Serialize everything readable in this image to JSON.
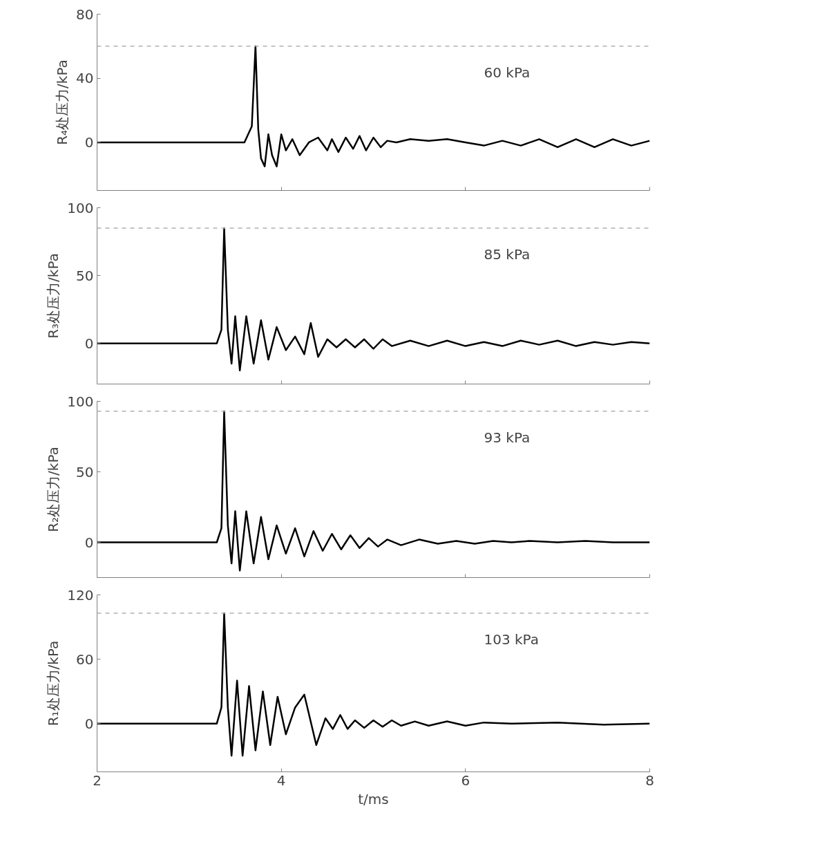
{
  "chart_data": [
    {
      "type": "line",
      "ylabel": "R₄处压力/kPa",
      "xlim": [
        2,
        8
      ],
      "xticks": [
        2,
        4,
        6,
        8
      ],
      "ylim": [
        -30,
        80
      ],
      "yticks": [
        0,
        40,
        80
      ],
      "tick_labels": "y",
      "ref_lines": [
        {
          "axis": "y",
          "value": 60,
          "label": "60 kPa",
          "color": "#b0b0b0",
          "line_style": "dashed"
        }
      ],
      "series": [
        {
          "color": "#000000",
          "x": [
            2,
            3.6,
            3.68,
            3.72,
            3.75,
            3.78,
            3.82,
            3.86,
            3.9,
            3.95,
            4.0,
            4.05,
            4.12,
            4.2,
            4.3,
            4.4,
            4.5,
            4.55,
            4.62,
            4.7,
            4.78,
            4.85,
            4.92,
            5.0,
            5.08,
            5.15,
            5.25,
            5.4,
            5.6,
            5.8,
            6.0,
            6.2,
            6.4,
            6.6,
            6.8,
            7.0,
            7.2,
            7.4,
            7.6,
            7.8,
            8.0
          ],
          "values": [
            0,
            0,
            10,
            60,
            8,
            -10,
            -15,
            5,
            -8,
            -15,
            5,
            -5,
            2,
            -8,
            0,
            3,
            -5,
            2,
            -6,
            3,
            -4,
            4,
            -5,
            3,
            -3,
            1,
            0,
            2,
            1,
            2,
            0,
            -2,
            1,
            -2,
            2,
            -3,
            2,
            -3,
            2,
            -2,
            1
          ]
        }
      ]
    },
    {
      "type": "line",
      "ylabel": "R₃处压力/kPa",
      "xlim": [
        2,
        8
      ],
      "xticks": [
        2,
        4,
        6,
        8
      ],
      "ylim": [
        -30,
        100
      ],
      "yticks": [
        0,
        50,
        100
      ],
      "tick_labels": "y",
      "ref_lines": [
        {
          "axis": "y",
          "value": 85,
          "label": "85 kPa",
          "color": "#b0b0b0",
          "line_style": "dashed"
        }
      ],
      "series": [
        {
          "color": "#000000",
          "x": [
            2,
            3.3,
            3.35,
            3.38,
            3.42,
            3.46,
            3.5,
            3.55,
            3.62,
            3.7,
            3.78,
            3.86,
            3.95,
            4.05,
            4.15,
            4.25,
            4.32,
            4.4,
            4.5,
            4.6,
            4.7,
            4.8,
            4.9,
            5.0,
            5.1,
            5.2,
            5.4,
            5.6,
            5.8,
            6.0,
            6.2,
            6.4,
            6.6,
            6.8,
            7.0,
            7.2,
            7.4,
            7.6,
            7.8,
            8.0
          ],
          "values": [
            0,
            0,
            10,
            85,
            10,
            -15,
            20,
            -20,
            20,
            -15,
            17,
            -12,
            12,
            -5,
            5,
            -8,
            15,
            -10,
            3,
            -3,
            3,
            -3,
            3,
            -4,
            3,
            -2,
            2,
            -2,
            2,
            -2,
            1,
            -2,
            2,
            -1,
            2,
            -2,
            1,
            -1,
            1,
            0
          ]
        }
      ]
    },
    {
      "type": "line",
      "ylabel": "R₂处压力/kPa",
      "xlim": [
        2,
        8
      ],
      "xticks": [
        2,
        4,
        6,
        8
      ],
      "ylim": [
        -25,
        100
      ],
      "yticks": [
        0,
        50,
        100
      ],
      "tick_labels": "y",
      "ref_lines": [
        {
          "axis": "y",
          "value": 93,
          "label": "93 kPa",
          "color": "#b0b0b0",
          "line_style": "dashed"
        }
      ],
      "series": [
        {
          "color": "#000000",
          "x": [
            2,
            3.3,
            3.35,
            3.38,
            3.42,
            3.46,
            3.5,
            3.55,
            3.62,
            3.7,
            3.78,
            3.86,
            3.95,
            4.05,
            4.15,
            4.25,
            4.35,
            4.45,
            4.55,
            4.65,
            4.75,
            4.85,
            4.95,
            5.05,
            5.15,
            5.3,
            5.5,
            5.7,
            5.9,
            6.1,
            6.3,
            6.5,
            6.7,
            7.0,
            7.3,
            7.6,
            8.0
          ],
          "values": [
            0,
            0,
            10,
            93,
            12,
            -15,
            22,
            -20,
            22,
            -15,
            18,
            -12,
            12,
            -8,
            10,
            -10,
            8,
            -6,
            6,
            -5,
            5,
            -4,
            3,
            -3,
            2,
            -2,
            2,
            -1,
            1,
            -1,
            1,
            0,
            1,
            0,
            1,
            0,
            0
          ]
        }
      ]
    },
    {
      "type": "line",
      "ylabel": "R₁处压力/kPa",
      "xlabel": "t/ms",
      "xlim": [
        2,
        8
      ],
      "xticks": [
        2,
        4,
        6,
        8
      ],
      "ylim": [
        -45,
        120
      ],
      "yticks": [
        0,
        60,
        120
      ],
      "ref_lines": [
        {
          "axis": "y",
          "value": 103,
          "label": "103 kPa",
          "color": "#b0b0b0",
          "line_style": "dashed"
        }
      ],
      "series": [
        {
          "color": "#000000",
          "x": [
            2,
            3.3,
            3.35,
            3.38,
            3.42,
            3.46,
            3.52,
            3.58,
            3.65,
            3.72,
            3.8,
            3.88,
            3.96,
            4.05,
            4.15,
            4.25,
            4.38,
            4.48,
            4.56,
            4.64,
            4.72,
            4.8,
            4.9,
            5.0,
            5.1,
            5.2,
            5.3,
            5.45,
            5.6,
            5.8,
            6.0,
            6.2,
            6.5,
            7.0,
            7.5,
            8.0
          ],
          "values": [
            0,
            0,
            15,
            103,
            15,
            -30,
            40,
            -30,
            35,
            -25,
            30,
            -20,
            25,
            -10,
            15,
            27,
            -20,
            5,
            -5,
            8,
            -5,
            3,
            -4,
            3,
            -3,
            3,
            -2,
            2,
            -2,
            2,
            -2,
            1,
            0,
            1,
            -1,
            0
          ]
        }
      ]
    }
  ]
}
